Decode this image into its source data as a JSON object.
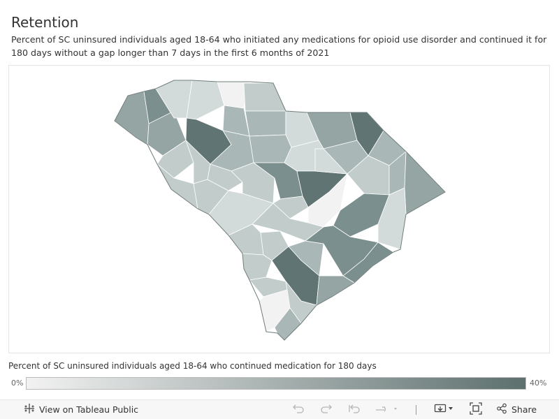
{
  "header": {
    "title": "Retention",
    "subtitle": "Percent of SC uninsured individuals aged 18-64 who initiated any medications for opioid use disorder and continued it for 180 days without a gap longer than 7 days in the first 6 months of 2021"
  },
  "legend": {
    "title": "Percent of SC uninsured individuals aged 18-64 who continued medication for 180 days",
    "min_label": "0%",
    "max_label": "40%",
    "color_low": "#f2f2f2",
    "color_high": "#5d706e"
  },
  "map": {
    "colors": {
      "darkest": "#5f7473",
      "dark": "#7b8f8e",
      "mid_dark": "#94a5a4",
      "mid": "#a9b8b7",
      "light": "#c1cccb",
      "lighter": "#d3dbda",
      "lightest": "#f2f2f2",
      "outline": "#6f7c7c"
    }
  },
  "toolbar": {
    "view_label": "View on Tableau Public",
    "share_label": "Share",
    "icons": {
      "tableau": "tableau-logo-icon",
      "undo": "undo-icon",
      "redo": "redo-icon",
      "revert": "revert-icon",
      "refresh": "refresh-icon",
      "download": "download-icon",
      "fullscreen": "fullscreen-icon",
      "share": "share-icon"
    }
  }
}
